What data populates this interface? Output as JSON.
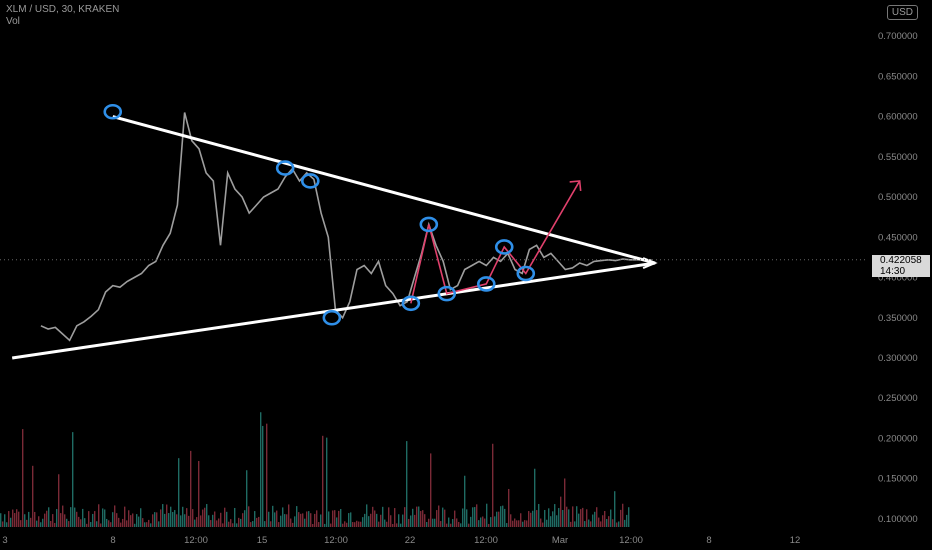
{
  "header": {
    "symbol_line": "XLM / USD, 30, KRAKEN",
    "volume_label": "Vol"
  },
  "currency_button": "USD",
  "price_label": {
    "price": "0.422058",
    "countdown": "14:30"
  },
  "colors": {
    "background": "#000000",
    "price_line": "#9e9e9e",
    "trendline": "#ffffff",
    "marker": "#2f8fe8",
    "projection": "#e0406c",
    "volume_up": "#1f6b63",
    "volume_down": "#7a2a36"
  },
  "chart_data": {
    "type": "line",
    "y_axis": {
      "ticks": [
        "0.700000",
        "0.650000",
        "0.600000",
        "0.550000",
        "0.500000",
        "0.450000",
        "0.400000",
        "0.350000",
        "0.300000",
        "0.250000",
        "0.200000",
        "0.150000",
        "0.100000"
      ],
      "range": [
        0.09,
        0.72
      ]
    },
    "x_axis": {
      "ticks": [
        "3",
        "8",
        "12:00",
        "15",
        "12:00",
        "22",
        "12:00",
        "Mar",
        "12:00",
        "8",
        "12"
      ]
    },
    "price_series": {
      "x": [
        0,
        2,
        4,
        6,
        8,
        10,
        12,
        14,
        16,
        18,
        20,
        22,
        24,
        26,
        28,
        30,
        32,
        34,
        36,
        38,
        40,
        42,
        44,
        46,
        48,
        50,
        52,
        54,
        56,
        58,
        60,
        62,
        64,
        66,
        68,
        70,
        72,
        74,
        76,
        78,
        80,
        82,
        84,
        86,
        88,
        90,
        92,
        94,
        96,
        98,
        100,
        102,
        104,
        106,
        108,
        110,
        112,
        114,
        116,
        118,
        120,
        122,
        124,
        126,
        128,
        130,
        132,
        134,
        136,
        138,
        140,
        142,
        144,
        146,
        148,
        150,
        152,
        154,
        156,
        158,
        160,
        162,
        164,
        166,
        168,
        170
      ],
      "y": [
        0.34,
        0.336,
        0.338,
        0.33,
        0.322,
        0.34,
        0.345,
        0.352,
        0.36,
        0.382,
        0.39,
        0.388,
        0.395,
        0.4,
        0.405,
        0.415,
        0.42,
        0.44,
        0.455,
        0.49,
        0.605,
        0.57,
        0.56,
        0.53,
        0.52,
        0.44,
        0.53,
        0.51,
        0.5,
        0.48,
        0.49,
        0.5,
        0.505,
        0.51,
        0.525,
        0.535,
        0.52,
        0.53,
        0.522,
        0.48,
        0.45,
        0.36,
        0.35,
        0.37,
        0.41,
        0.415,
        0.405,
        0.42,
        0.39,
        0.38,
        0.365,
        0.37,
        0.4,
        0.43,
        0.466,
        0.44,
        0.42,
        0.385,
        0.39,
        0.41,
        0.415,
        0.42,
        0.415,
        0.425,
        0.42,
        0.43,
        0.41,
        0.405,
        0.435,
        0.44,
        0.425,
        0.43,
        0.42,
        0.41,
        0.412,
        0.418,
        0.415,
        0.42,
        0.421,
        0.422,
        0.421,
        0.423,
        0.422,
        0.422,
        0.422,
        0.422
      ]
    },
    "volume": {
      "range": [
        0,
        0.17
      ]
    },
    "annotations": {
      "upper_trendline": [
        [
          0.6,
          20
        ],
        [
          0.418,
          171
        ]
      ],
      "lower_trendline": [
        [
          0.3,
          -8
        ],
        [
          0.418,
          171
        ]
      ],
      "markers": [
        {
          "x": 20,
          "y": 0.606
        },
        {
          "x": 68,
          "y": 0.536
        },
        {
          "x": 75,
          "y": 0.52
        },
        {
          "x": 81,
          "y": 0.35
        },
        {
          "x": 103,
          "y": 0.368
        },
        {
          "x": 108,
          "y": 0.466
        },
        {
          "x": 113,
          "y": 0.38
        },
        {
          "x": 124,
          "y": 0.392
        },
        {
          "x": 129,
          "y": 0.438
        },
        {
          "x": 135,
          "y": 0.405
        }
      ],
      "projection_path": [
        [
          103,
          0.368
        ],
        [
          108,
          0.466
        ],
        [
          113,
          0.38
        ],
        [
          124,
          0.392
        ],
        [
          129,
          0.438
        ],
        [
          135,
          0.405
        ],
        [
          150,
          0.52
        ]
      ]
    }
  }
}
